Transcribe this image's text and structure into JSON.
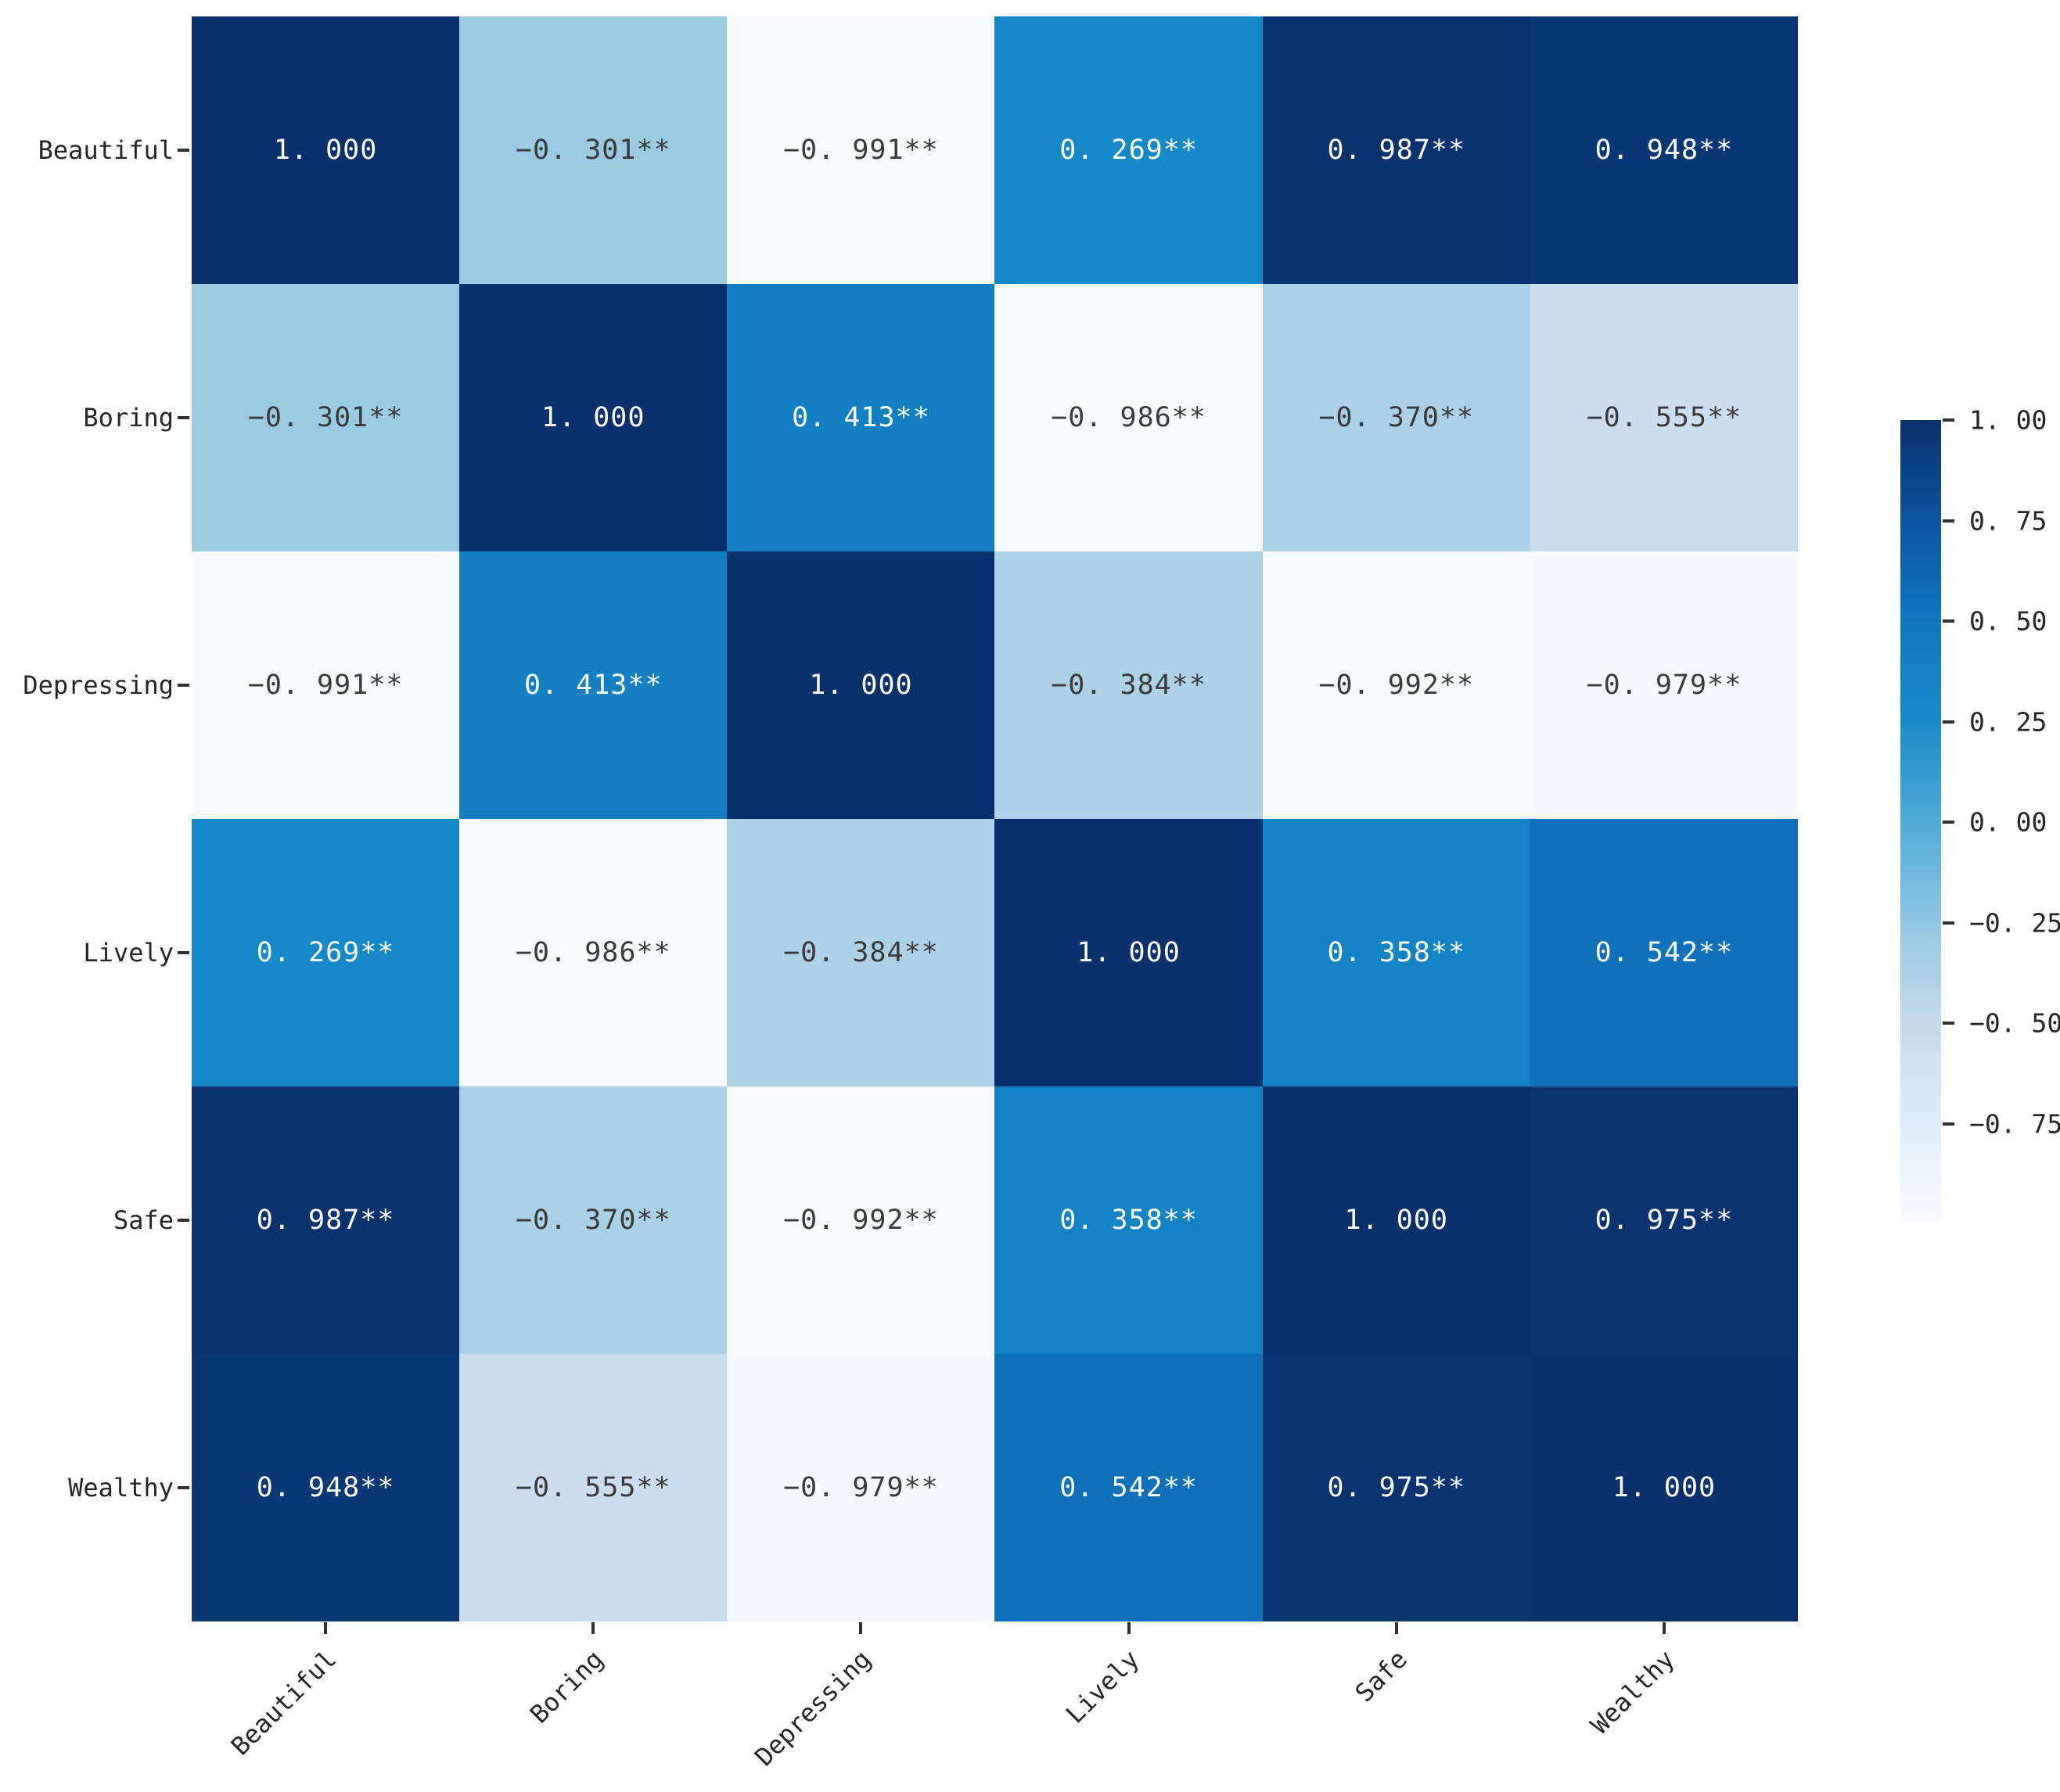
{
  "chart_data": {
    "type": "heatmap",
    "title": "",
    "xlabel": "",
    "ylabel": "",
    "grid": false,
    "legend_position": "right-colorbar",
    "categories": [
      "Beautiful",
      "Boring",
      "Depressing",
      "Lively",
      "Safe",
      "Wealthy"
    ],
    "matrix": [
      [
        1.0,
        -0.301,
        -0.991,
        0.269,
        0.987,
        0.948
      ],
      [
        -0.301,
        1.0,
        0.413,
        -0.986,
        -0.37,
        -0.555
      ],
      [
        -0.991,
        0.413,
        1.0,
        -0.384,
        -0.992,
        -0.979
      ],
      [
        0.269,
        -0.986,
        -0.384,
        1.0,
        0.358,
        0.542
      ],
      [
        0.987,
        -0.37,
        -0.992,
        0.358,
        1.0,
        0.975
      ],
      [
        0.948,
        -0.555,
        -0.979,
        0.542,
        0.975,
        1.0
      ]
    ],
    "cell_labels": [
      [
        "1. 000",
        "−0. 301**",
        "−0. 991**",
        "0. 269**",
        "0. 987**",
        "0. 948**"
      ],
      [
        "−0. 301**",
        "1. 000",
        "0. 413**",
        "−0. 986**",
        "−0. 370**",
        "−0. 555**"
      ],
      [
        "−0. 991**",
        "0. 413**",
        "1. 000",
        "−0. 384**",
        "−0. 992**",
        "−0. 979**"
      ],
      [
        "0. 269**",
        "−0. 986**",
        "−0. 384**",
        "1. 000",
        "0. 358**",
        "0. 542**"
      ],
      [
        "0. 987**",
        "−0. 370**",
        "−0. 992**",
        "0. 358**",
        "1. 000",
        "0. 975**"
      ],
      [
        "0. 948**",
        "−0. 555**",
        "−0. 979**",
        "0. 542**",
        "0. 975**",
        "1. 000"
      ]
    ],
    "colormap": {
      "name": "Blues",
      "vmin": -0.992,
      "vmax": 1.0,
      "stops": [
        {
          "t": 0.0,
          "color": "#f7fbff"
        },
        {
          "t": 0.125,
          "color": "#deecf7"
        },
        {
          "t": 0.25,
          "color": "#c3daed"
        },
        {
          "t": 0.35,
          "color": "#9acbe3"
        },
        {
          "t": 0.5,
          "color": "#4fabd7"
        },
        {
          "t": 0.633,
          "color": "#1489c6"
        },
        {
          "t": 0.71,
          "color": "#127fc0"
        },
        {
          "t": 0.77,
          "color": "#0f72b8"
        },
        {
          "t": 0.875,
          "color": "#0b539e"
        },
        {
          "t": 1.0,
          "color": "#09316b"
        }
      ],
      "annot_color_dark_cells": "#ffffff",
      "annot_color_light_cells": "#3a3a3a"
    },
    "colorbar": {
      "tick_labels": [
        "1. 00",
        "0. 75",
        "0. 50",
        "0. 25",
        "0. 00",
        "−0. 25",
        "−0. 50",
        "−0. 75"
      ],
      "tick_values": [
        1.0,
        0.75,
        0.5,
        0.25,
        0.0,
        -0.25,
        -0.5,
        -0.75
      ]
    }
  }
}
